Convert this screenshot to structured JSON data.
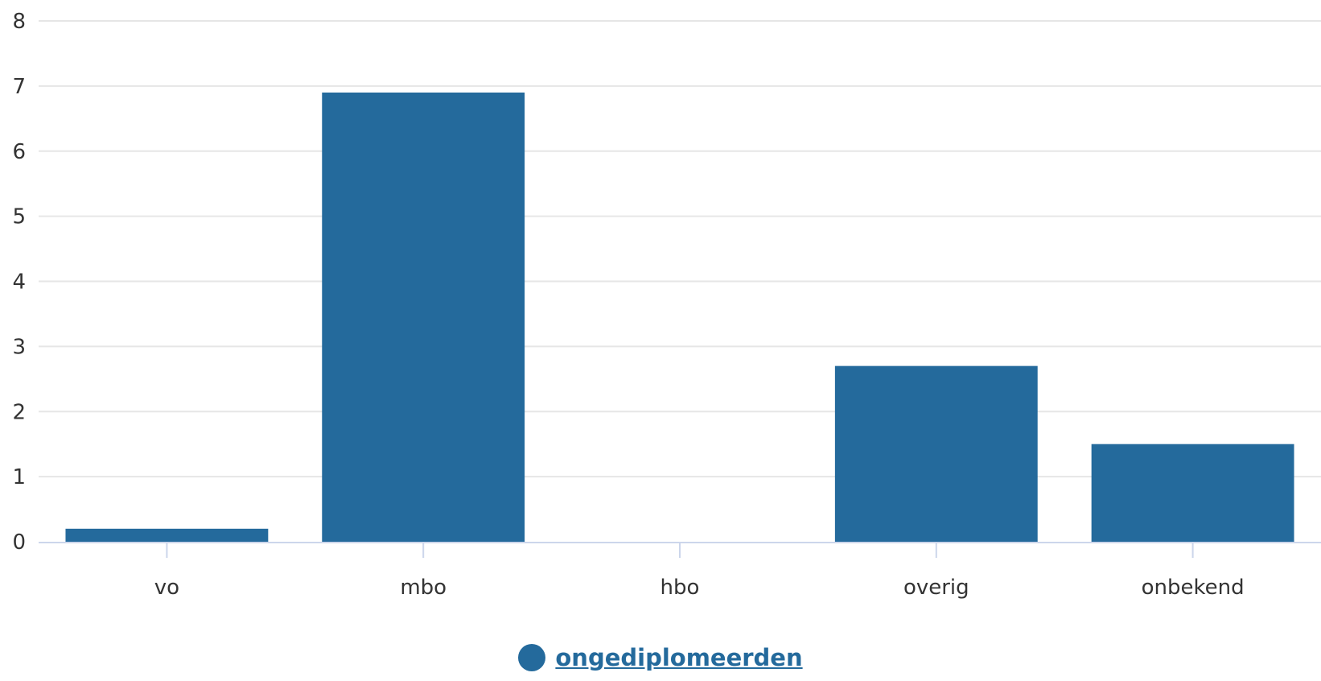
{
  "chart_data": {
    "type": "bar",
    "categories": [
      "vo",
      "mbo",
      "hbo",
      "overig",
      "onbekend"
    ],
    "series": [
      {
        "name": "ongediplomeerden",
        "values": [
          0.2,
          6.9,
          0,
          2.7,
          1.5
        ],
        "color": "#246a9c"
      }
    ],
    "ylim": [
      0,
      8
    ],
    "yticks": [
      "0",
      "1",
      "2",
      "3",
      "4",
      "5",
      "6",
      "7",
      "8"
    ],
    "grid": true,
    "legend": "bottom-center"
  },
  "colors": {
    "bar": "#246a9c",
    "grid": "#e6e6e6",
    "axis": "#ccd6eb",
    "legend_text": "#246a9c"
  }
}
